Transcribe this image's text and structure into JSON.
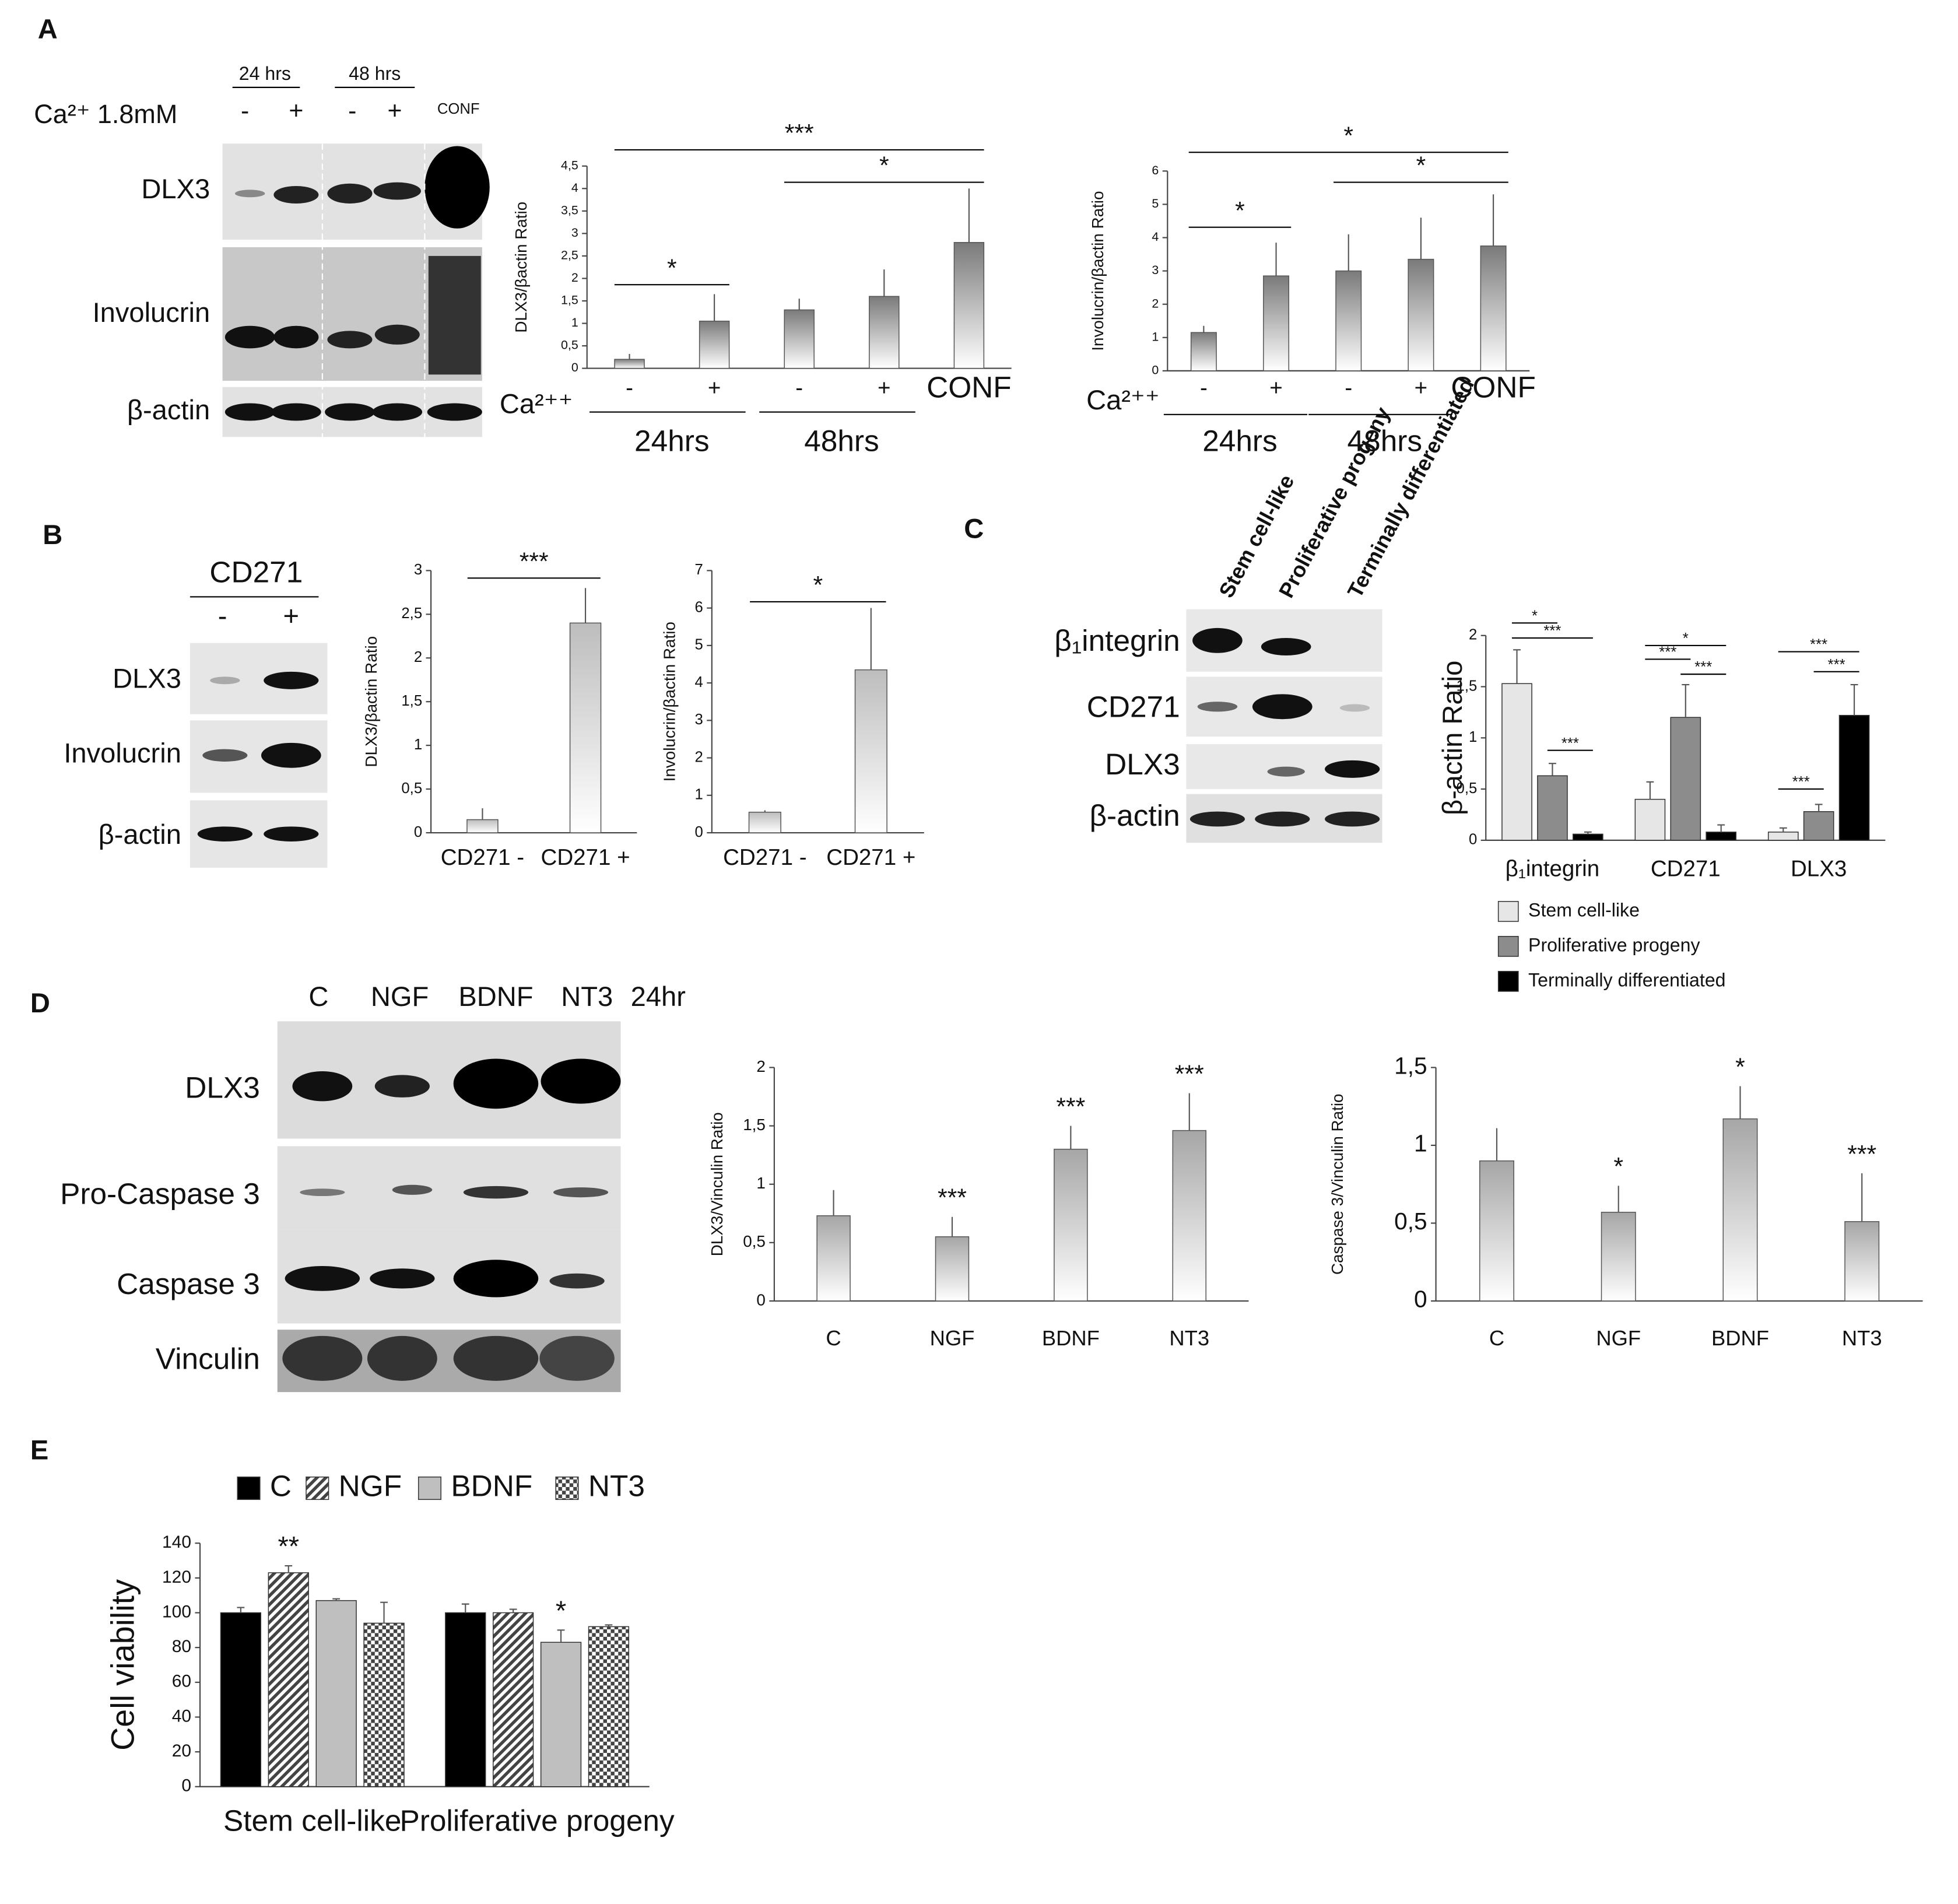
{
  "panel_labels": [
    "A",
    "B",
    "C",
    "D",
    "E"
  ],
  "blots": {
    "A": {
      "time_labels": [
        "24 hrs",
        "48 hrs"
      ],
      "treatment": "Ca²⁺ 1.8mM",
      "lanes": [
        "-",
        "+",
        "-",
        "+",
        "CONF"
      ],
      "rows": [
        "DLX3",
        "Involucrin",
        "β-actin"
      ]
    },
    "B": {
      "header": "CD271",
      "lanes": [
        "-",
        "+"
      ],
      "rows": [
        "DLX3",
        "Involucrin",
        "β-actin"
      ]
    },
    "C": {
      "lanes": [
        "Stem cell-like",
        "Proliferative progeny",
        "Terminally differentiated"
      ],
      "rows": [
        "β₁integrin",
        "CD271",
        "DLX3",
        "β-actin"
      ]
    },
    "D": {
      "lanes": [
        "C",
        "NGF",
        "BDNF",
        "NT3",
        "24hr"
      ],
      "rows": [
        "DLX3",
        "Pro-Caspase 3",
        "Caspase 3",
        "Vinculin"
      ]
    }
  },
  "chart_data": [
    {
      "type": "bar",
      "y_label": "DLX3/βactin Ratio",
      "x_label": "Ca²⁺⁺",
      "categories": [
        "-",
        "+",
        "-",
        "+",
        "CONF"
      ],
      "group_labels": [
        "24hrs",
        "48hrs"
      ],
      "values": [
        0.2,
        1.05,
        1.3,
        1.6,
        2.8
      ],
      "errors": [
        0.12,
        0.6,
        0.25,
        0.6,
        1.2
      ],
      "color": "#7a7a7a",
      "ylim": [
        0,
        4.5
      ],
      "yticks": [
        0,
        {
          "value": 0.5,
          "label": "0,5"
        },
        1,
        {
          "value": 1.5,
          "label": "1,5"
        },
        2,
        {
          "value": 2.5,
          "label": "2,5"
        },
        3,
        {
          "value": 3.5,
          "label": "3,5"
        },
        4,
        {
          "value": 4.5,
          "label": "4,5"
        }
      ],
      "brackets": [
        "*",
        "***",
        "*"
      ]
    },
    {
      "type": "bar",
      "y_label": "Involucrin/βactin Ratio",
      "x_label": "Ca²⁺⁺",
      "categories": [
        "-",
        "+",
        "-",
        "+",
        "CONF"
      ],
      "group_labels": [
        "24hrs",
        "48hrs"
      ],
      "values": [
        1.15,
        2.85,
        3.0,
        3.35,
        3.75
      ],
      "errors": [
        0.2,
        1.0,
        1.1,
        1.25,
        1.55
      ],
      "color": "#7a7a7a",
      "ylim": [
        0,
        6
      ],
      "yticks": [
        0,
        1,
        2,
        3,
        4,
        5,
        6
      ],
      "brackets": [
        "*",
        "*",
        "*"
      ]
    },
    {
      "type": "bar",
      "y_label": "DLX3/βactin Ratio",
      "categories": [
        "CD271 -",
        "CD271 +"
      ],
      "values": [
        0.15,
        2.4
      ],
      "errors": [
        0.13,
        0.4
      ],
      "color": "#bdbdbd",
      "ylim": [
        0,
        3
      ],
      "yticks": [
        0,
        {
          "value": 0.5,
          "label": "0,5"
        },
        1,
        {
          "value": 1.5,
          "label": "1,5"
        },
        2,
        {
          "value": 2.5,
          "label": "2,5"
        },
        3
      ],
      "brackets": [
        "***"
      ]
    },
    {
      "type": "bar",
      "y_label": "Involucrin/βactin Ratio",
      "categories": [
        "CD271 -",
        "CD271 +"
      ],
      "values": [
        0.55,
        4.35
      ],
      "errors": [
        0.05,
        1.65
      ],
      "color": "#bdbdbd",
      "ylim": [
        0,
        7
      ],
      "yticks": [
        0,
        1,
        2,
        3,
        4,
        5,
        6,
        7
      ],
      "brackets": [
        "*"
      ]
    },
    {
      "type": "bar",
      "y_label": "β-actin Ratio",
      "categories": [
        "β₁integrin",
        "CD271",
        "DLX3"
      ],
      "ylim": [
        0,
        2
      ],
      "yticks": [
        0,
        {
          "value": 0.5,
          "label": "0,5"
        },
        1,
        {
          "value": 1.5,
          "label": "1,5"
        },
        2
      ],
      "series": [
        {
          "name": "Stem cell-like",
          "color": "#e6e6e6",
          "values": [
            1.53,
            0.4,
            0.08
          ],
          "errors": [
            0.33,
            0.17,
            0.04
          ]
        },
        {
          "name": "Proliferative progeny",
          "color": "#8c8c8c",
          "values": [
            0.63,
            1.2,
            0.28
          ],
          "errors": [
            0.12,
            0.32,
            0.07
          ]
        },
        {
          "name": "Terminally differentiated",
          "color": "#000000",
          "values": [
            0.06,
            0.08,
            1.22
          ],
          "errors": [
            0.02,
            0.07,
            0.3
          ]
        }
      ],
      "brackets": [
        "*",
        "***",
        "***",
        "*",
        "***",
        "***",
        "***",
        "***",
        "***"
      ]
    },
    {
      "type": "bar",
      "y_label": "DLX3/Vinculin Ratio",
      "categories": [
        "C",
        "NGF",
        "BDNF",
        "NT3"
      ],
      "values": [
        0.73,
        0.55,
        1.3,
        1.46
      ],
      "errors": [
        0.22,
        0.17,
        0.2,
        0.32
      ],
      "significance": [
        null,
        "***",
        "***",
        "***"
      ],
      "color": "#a6a6a6",
      "ylim": [
        0,
        2
      ],
      "yticks": [
        0,
        {
          "value": 0.5,
          "label": "0,5"
        },
        1,
        {
          "value": 1.5,
          "label": "1,5"
        },
        2
      ]
    },
    {
      "type": "bar",
      "y_label": "Caspase 3/Vinculin Ratio",
      "categories": [
        "C",
        "NGF",
        "BDNF",
        "NT3"
      ],
      "values": [
        0.9,
        0.57,
        1.17,
        0.51
      ],
      "errors": [
        0.21,
        0.17,
        0.21,
        0.31
      ],
      "significance": [
        null,
        "*",
        "*",
        "***"
      ],
      "color": "#a6a6a6",
      "ylim": [
        0,
        1.5
      ],
      "yticks": [
        0,
        {
          "value": 0.5,
          "label": "0,5"
        },
        1,
        {
          "value": 1.5,
          "label": "1,5"
        }
      ]
    },
    {
      "type": "bar",
      "y_label": "Cell viability",
      "categories": [
        "Stem cell-like",
        "Proliferative progeny"
      ],
      "ylim": [
        0,
        140
      ],
      "yticks": [
        0,
        20,
        40,
        60,
        80,
        100,
        120,
        140
      ],
      "series": [
        {
          "name": "C",
          "color": "#000000",
          "fill": "solid",
          "values": [
            100,
            100
          ],
          "errors": [
            3,
            5
          ]
        },
        {
          "name": "NGF",
          "color": "#444444",
          "fill": "hatch",
          "values": [
            123,
            100
          ],
          "errors": [
            4,
            2
          ],
          "significance": [
            "**",
            null
          ]
        },
        {
          "name": "BDNF",
          "color": "#bfbfbf",
          "fill": "solid",
          "values": [
            107,
            83
          ],
          "errors": [
            1,
            7
          ],
          "significance": [
            null,
            "*"
          ]
        },
        {
          "name": "NT3",
          "color": "#444444",
          "fill": "checker",
          "values": [
            94,
            92
          ],
          "errors": [
            12,
            1
          ]
        }
      ]
    }
  ]
}
